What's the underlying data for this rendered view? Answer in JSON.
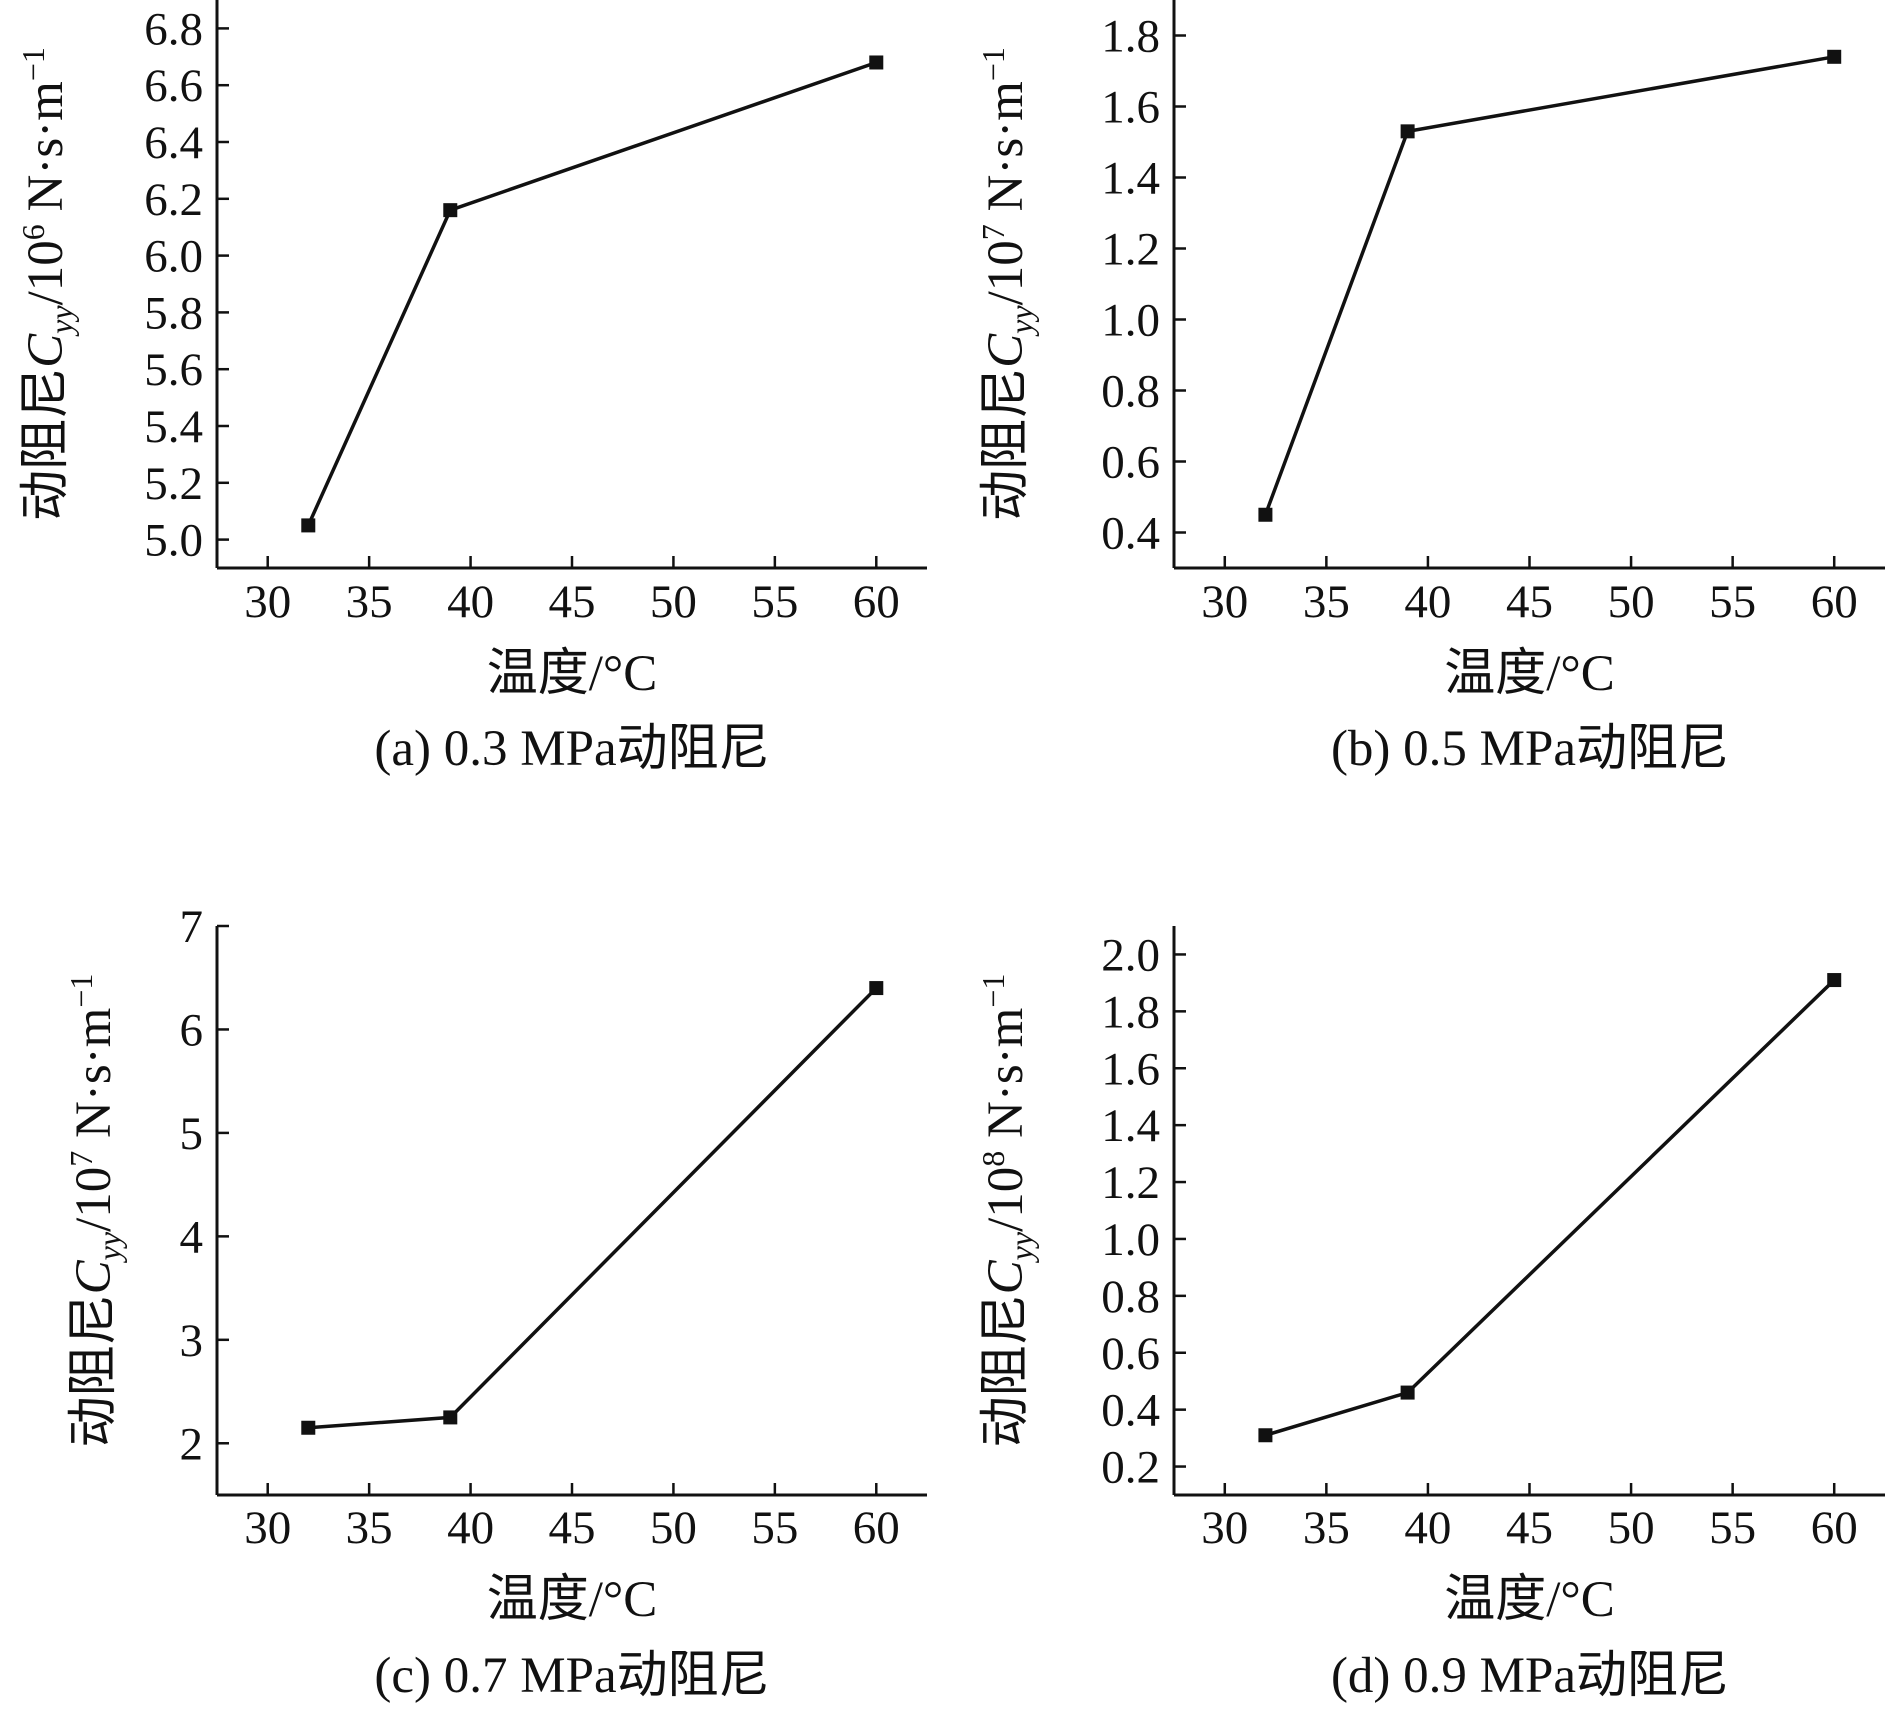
{
  "colors": {
    "ink": "#111111",
    "background": "#ffffff"
  },
  "chart_data": [
    {
      "type": "line",
      "caption": "(a) 0.3 MPa动阻尼",
      "xlabel": "温度/°C",
      "ylabel": {
        "prefix": "动阻尼",
        "symbol": "C",
        "subscript": "yy",
        "unit_base": "/10",
        "unit_exp": "6",
        "unit_tail": " N·s·m",
        "unit_tail_exp": "−1"
      },
      "xlim": [
        27.5,
        62.5
      ],
      "ylim": [
        4.9,
        6.9
      ],
      "xticks": [
        30,
        35,
        40,
        45,
        50,
        55,
        60
      ],
      "yticks": [
        5.0,
        5.2,
        5.4,
        5.6,
        5.8,
        6.0,
        6.2,
        6.4,
        6.6,
        6.8
      ],
      "yticklabels": [
        "5.0",
        "5.2",
        "5.4",
        "5.6",
        "5.8",
        "6.0",
        "6.2",
        "6.4",
        "6.6",
        "6.8"
      ],
      "x": [
        32,
        39,
        60
      ],
      "y": [
        5.05,
        6.16,
        6.68
      ],
      "marker": "square"
    },
    {
      "type": "line",
      "caption": "(b) 0.5 MPa动阻尼",
      "xlabel": "温度/°C",
      "ylabel": {
        "prefix": "动阻尼",
        "symbol": "C",
        "subscript": "yy",
        "unit_base": "/10",
        "unit_exp": "7",
        "unit_tail": " N·s·m",
        "unit_tail_exp": "−1"
      },
      "xlim": [
        27.5,
        62.5
      ],
      "ylim": [
        0.3,
        1.9
      ],
      "xticks": [
        30,
        35,
        40,
        45,
        50,
        55,
        60
      ],
      "yticks": [
        0.4,
        0.6,
        0.8,
        1.0,
        1.2,
        1.4,
        1.6,
        1.8
      ],
      "yticklabels": [
        "0.4",
        "0.6",
        "0.8",
        "1.0",
        "1.2",
        "1.4",
        "1.6",
        "1.8"
      ],
      "x": [
        32,
        39,
        60
      ],
      "y": [
        0.45,
        1.53,
        1.74
      ],
      "marker": "square"
    },
    {
      "type": "line",
      "caption": "(c) 0.7 MPa动阻尼",
      "xlabel": "温度/°C",
      "ylabel": {
        "prefix": "动阻尼",
        "symbol": "C",
        "subscript": "yy",
        "unit_base": "/10",
        "unit_exp": "7",
        "unit_tail": " N·s·m",
        "unit_tail_exp": "−1"
      },
      "xlim": [
        27.5,
        62.5
      ],
      "ylim": [
        1.5,
        7.0
      ],
      "xticks": [
        30,
        35,
        40,
        45,
        50,
        55,
        60
      ],
      "yticks": [
        2,
        3,
        4,
        5,
        6,
        7
      ],
      "yticklabels": [
        "2",
        "3",
        "4",
        "5",
        "6",
        "7"
      ],
      "x": [
        32,
        39,
        60
      ],
      "y": [
        2.15,
        2.25,
        6.4
      ],
      "marker": "square"
    },
    {
      "type": "line",
      "caption": "(d) 0.9 MPa动阻尼",
      "xlabel": "温度/°C",
      "ylabel": {
        "prefix": "动阻尼",
        "symbol": "C",
        "subscript": "yy",
        "unit_base": "/10",
        "unit_exp": "8",
        "unit_tail": " N·s·m",
        "unit_tail_exp": "−1"
      },
      "xlim": [
        27.5,
        62.5
      ],
      "ylim": [
        0.1,
        2.1
      ],
      "xticks": [
        30,
        35,
        40,
        45,
        50,
        55,
        60
      ],
      "yticks": [
        0.2,
        0.4,
        0.6,
        0.8,
        1.0,
        1.2,
        1.4,
        1.6,
        1.8,
        2.0
      ],
      "yticklabels": [
        "0.2",
        "0.4",
        "0.6",
        "0.8",
        "1.0",
        "1.2",
        "1.4",
        "1.6",
        "1.8",
        "2.0"
      ],
      "x": [
        32,
        39,
        60
      ],
      "y": [
        0.31,
        0.46,
        1.91
      ],
      "marker": "square"
    }
  ]
}
